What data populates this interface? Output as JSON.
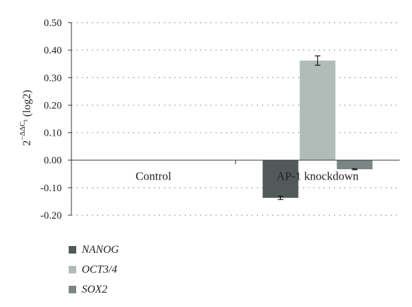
{
  "chart_data": {
    "type": "bar",
    "categories": [
      "Control",
      "AP-1 knockdown"
    ],
    "series": [
      {
        "name": "NANOG",
        "values": [
          0,
          -0.137
        ],
        "errors": [
          0,
          0.006
        ],
        "color": "#525a59"
      },
      {
        "name": "OCT3/4",
        "values": [
          0,
          0.362
        ],
        "errors": [
          0,
          0.017
        ],
        "color": "#b1bcb9"
      },
      {
        "name": "SOX2",
        "values": [
          0,
          -0.033
        ],
        "errors": [
          0,
          0.002
        ],
        "color": "#7b8583"
      }
    ],
    "ylabel": {
      "base": "2",
      "sup": "−ΔΔC",
      "sub": "t",
      "suffix": " (log2)"
    },
    "ylim": [
      -0.2,
      0.5
    ],
    "yticks": [
      "-0.20",
      "-0.10",
      "0.00",
      "0.10",
      "0.20",
      "0.30",
      "0.40",
      "0.50"
    ],
    "grid": "dotted horizontal",
    "legend_position": "bottom-left"
  }
}
